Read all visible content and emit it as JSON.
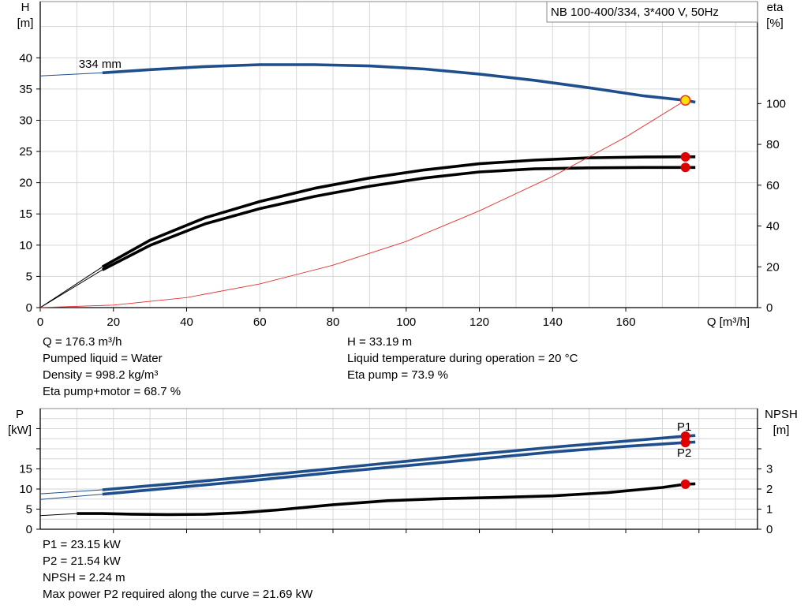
{
  "chart_data": [
    {
      "type": "line",
      "title": "NB 100-400/334, 3*400 V, 50Hz",
      "xlabel": "Q [m³/h]",
      "ylabel": "H\n[m]",
      "y2label": "eta\n[%]",
      "xlim": [
        0,
        196
      ],
      "ylim": [
        0,
        49
      ],
      "y2lim": [
        0,
        150
      ],
      "xticks": [
        0,
        20,
        40,
        60,
        80,
        100,
        120,
        140,
        160
      ],
      "yticks": [
        0,
        5,
        10,
        15,
        20,
        25,
        30,
        35,
        40
      ],
      "y2ticks": [
        0,
        20,
        40,
        60,
        80,
        100
      ],
      "grid": true,
      "curve_label": "334 mm",
      "series": [
        {
          "name": "334 mm",
          "axis": "y",
          "color": "#1f4e8c",
          "x": [
            0,
            17,
            30,
            45,
            60,
            75,
            90,
            105,
            120,
            135,
            150,
            165,
            176.3,
            179
          ],
          "y": [
            37.1,
            37.6,
            38.1,
            38.6,
            38.9,
            38.9,
            38.7,
            38.2,
            37.4,
            36.4,
            35.2,
            33.9,
            33.19,
            32.9
          ]
        },
        {
          "axis": "y2",
          "color": "#000000",
          "x": [
            0,
            17,
            30,
            45,
            60,
            75,
            90,
            105,
            120,
            135,
            150,
            165,
            176.3,
            179
          ],
          "y": [
            0,
            20,
            33,
            44,
            52,
            58.5,
            63.5,
            67.5,
            70.5,
            72.3,
            73.4,
            73.8,
            73.9,
            73.9
          ]
        },
        {
          "axis": "y2",
          "color": "#000000",
          "x": [
            0,
            17,
            30,
            45,
            60,
            75,
            90,
            105,
            120,
            135,
            150,
            165,
            176.3,
            179
          ],
          "y": [
            0,
            18.5,
            30.5,
            41,
            48.5,
            54.5,
            59.5,
            63.5,
            66.5,
            68,
            68.5,
            68.7,
            68.7,
            68.7
          ]
        },
        {
          "axis": "y",
          "color": "#e83030",
          "x": [
            0,
            20,
            40,
            60,
            80,
            100,
            120,
            140,
            160,
            176.3
          ],
          "y": [
            0,
            0.4,
            1.6,
            3.8,
            6.8,
            10.6,
            15.5,
            21,
            27.3,
            33.19
          ]
        }
      ],
      "markers": [
        {
          "x": 176.3,
          "y": 33.19,
          "axis": "y",
          "color": "#ffe000",
          "stroke": "#e83030"
        },
        {
          "x": 176.3,
          "y": 73.9,
          "axis": "y2",
          "color": "#e00000"
        },
        {
          "x": 176.3,
          "y": 68.7,
          "axis": "y2",
          "color": "#e00000"
        }
      ]
    },
    {
      "type": "line",
      "ylabel": "P\n[kW]",
      "y2label": "NPSH\n[m]",
      "xlim": [
        0,
        196
      ],
      "ylim": [
        0,
        30
      ],
      "y2lim": [
        0,
        6
      ],
      "yticks": [
        0,
        5,
        10,
        15
      ],
      "y2ticks": [
        0,
        1,
        2,
        3
      ],
      "grid": true,
      "series": [
        {
          "name": "P1",
          "axis": "y",
          "color": "#1f4e8c",
          "x": [
            0,
            17,
            40,
            60,
            80,
            100,
            120,
            140,
            160,
            176.3,
            179
          ],
          "y": [
            8.8,
            9.8,
            11.6,
            13.3,
            15.1,
            16.9,
            18.7,
            20.4,
            21.9,
            23.15,
            23.3
          ]
        },
        {
          "name": "P2",
          "axis": "y",
          "color": "#1f4e8c",
          "x": [
            0,
            17,
            40,
            60,
            80,
            100,
            120,
            140,
            160,
            176.3,
            179
          ],
          "y": [
            7.4,
            8.7,
            10.6,
            12.3,
            14.1,
            15.8,
            17.5,
            19.2,
            20.6,
            21.54,
            21.69
          ]
        },
        {
          "axis": "y2",
          "color": "#000000",
          "x": [
            0,
            10,
            17,
            25,
            35,
            45,
            55,
            65,
            80,
            95,
            110,
            125,
            140,
            155,
            170,
            176.3,
            179
          ],
          "y": [
            0.68,
            0.78,
            0.78,
            0.75,
            0.73,
            0.74,
            0.82,
            0.96,
            1.22,
            1.42,
            1.52,
            1.58,
            1.66,
            1.82,
            2.08,
            2.24,
            2.26
          ]
        }
      ],
      "markers": [
        {
          "x": 176.3,
          "y": 23.15,
          "axis": "y",
          "color": "#e00000"
        },
        {
          "x": 176.3,
          "y": 21.54,
          "axis": "y",
          "color": "#e00000"
        },
        {
          "x": 176.3,
          "y": 2.24,
          "axis": "y2",
          "color": "#e00000"
        }
      ]
    }
  ],
  "info_top": {
    "left": [
      "Q = 176.3 m³/h",
      "Pumped liquid = Water",
      "Density = 998.2 kg/m³",
      "Eta pump+motor = 68.7 %"
    ],
    "right": [
      "H = 33.19 m",
      "Liquid temperature during operation = 20 °C",
      "Eta pump = 73.9 %"
    ]
  },
  "info_bottom": [
    "P1 = 23.15 kW",
    "P2 = 21.54 kW",
    "NPSH = 2.24 m",
    "Max power P2 required along the curve = 21.69 kW"
  ]
}
